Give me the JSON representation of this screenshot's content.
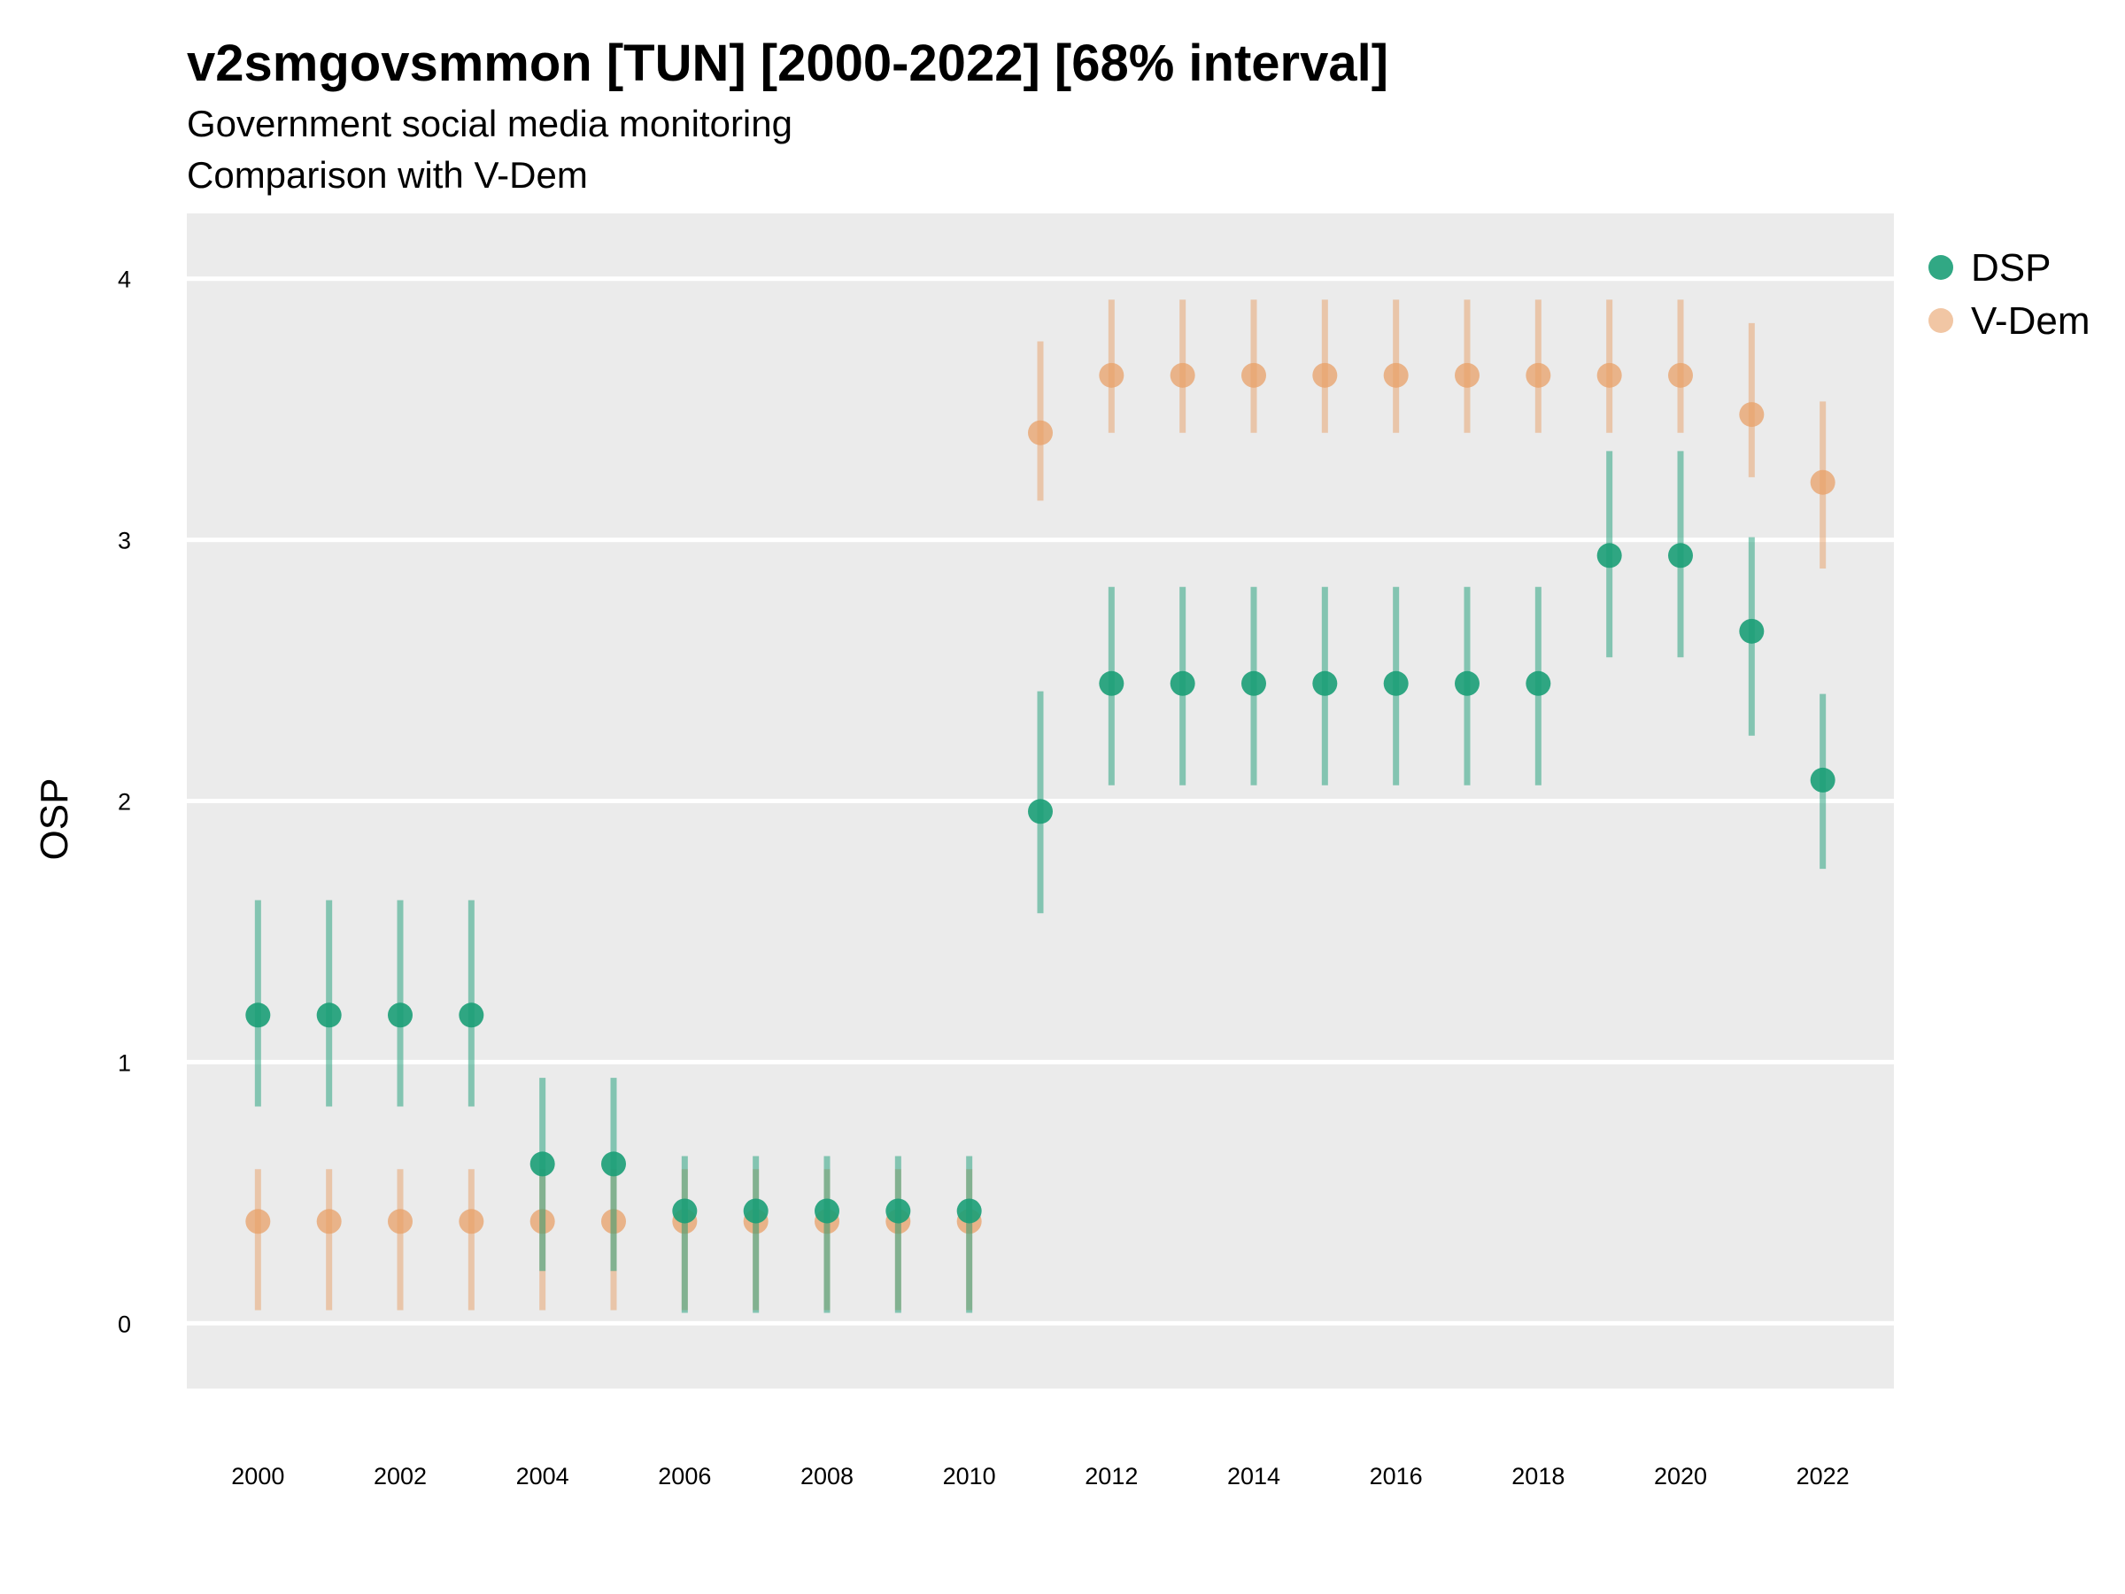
{
  "chart_data": {
    "type": "scatter",
    "title": "v2smgovsmmon [TUN] [2000-2022] [68% interval]",
    "subtitle": "Government social media monitoring",
    "subtitle2": "Comparison with V-Dem",
    "xlabel": "",
    "ylabel": "OSP",
    "xlim": [
      1999,
      2023
    ],
    "ylim": [
      -0.25,
      4.25
    ],
    "x_ticks": [
      "2000",
      "2002",
      "2004",
      "2006",
      "2008",
      "2010",
      "2012",
      "2014",
      "2016",
      "2018",
      "2020",
      "2022"
    ],
    "y_ticks": [
      "0",
      "1",
      "2",
      "3",
      "4"
    ],
    "grid": true,
    "legend_position": "right",
    "x": [
      2000,
      2001,
      2002,
      2003,
      2004,
      2005,
      2006,
      2007,
      2008,
      2009,
      2010,
      2011,
      2012,
      2013,
      2014,
      2015,
      2016,
      2017,
      2018,
      2019,
      2020,
      2021,
      2022
    ],
    "series": [
      {
        "name": "V-Dem",
        "color": "#e8a068",
        "values": [
          0.39,
          0.39,
          0.39,
          0.39,
          0.39,
          0.39,
          0.39,
          0.39,
          0.39,
          0.39,
          0.39,
          3.41,
          3.63,
          3.63,
          3.63,
          3.63,
          3.63,
          3.63,
          3.63,
          3.63,
          3.63,
          3.48,
          3.22
        ],
        "lower": [
          0.05,
          0.05,
          0.05,
          0.05,
          0.05,
          0.05,
          0.05,
          0.05,
          0.05,
          0.05,
          0.05,
          3.15,
          3.41,
          3.41,
          3.41,
          3.41,
          3.41,
          3.41,
          3.41,
          3.41,
          3.41,
          3.24,
          2.89
        ],
        "upper": [
          0.59,
          0.59,
          0.59,
          0.59,
          0.59,
          0.59,
          0.59,
          0.59,
          0.59,
          0.59,
          0.59,
          3.76,
          3.92,
          3.92,
          3.92,
          3.92,
          3.92,
          3.92,
          3.92,
          3.92,
          3.92,
          3.83,
          3.53
        ]
      },
      {
        "name": "DSP",
        "color": "#1b9e77",
        "values": [
          1.18,
          1.18,
          1.18,
          1.18,
          0.61,
          0.61,
          0.43,
          0.43,
          0.43,
          0.43,
          0.43,
          1.96,
          2.45,
          2.45,
          2.45,
          2.45,
          2.45,
          2.45,
          2.45,
          2.94,
          2.94,
          2.65,
          2.08
        ],
        "lower": [
          0.83,
          0.83,
          0.83,
          0.83,
          0.2,
          0.2,
          0.04,
          0.04,
          0.04,
          0.04,
          0.04,
          1.57,
          2.06,
          2.06,
          2.06,
          2.06,
          2.06,
          2.06,
          2.06,
          2.55,
          2.55,
          2.25,
          1.74
        ],
        "upper": [
          1.62,
          1.62,
          1.62,
          1.62,
          0.94,
          0.94,
          0.64,
          0.64,
          0.64,
          0.64,
          0.64,
          2.42,
          2.82,
          2.82,
          2.82,
          2.82,
          2.82,
          2.82,
          2.82,
          3.34,
          3.34,
          3.01,
          2.41
        ]
      }
    ]
  },
  "colors": {
    "panel_background": "#ebebeb",
    "grid": "#ffffff"
  }
}
